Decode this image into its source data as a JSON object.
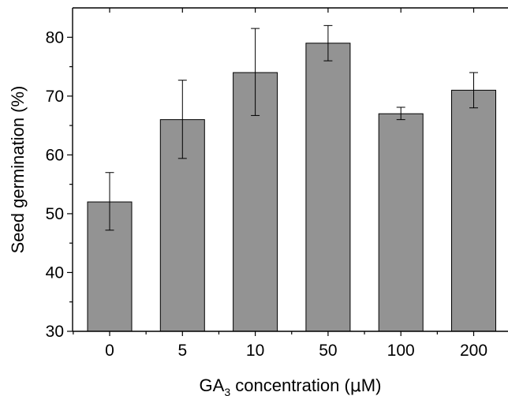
{
  "chart_data": {
    "type": "bar",
    "categories": [
      "0",
      "5",
      "10",
      "50",
      "100",
      "200"
    ],
    "values": [
      52,
      66,
      74,
      79,
      67,
      71
    ],
    "error_low": [
      47.2,
      59.4,
      66.7,
      76.0,
      66.0,
      68.0
    ],
    "error_high": [
      57.0,
      72.7,
      81.5,
      82.0,
      68.1,
      74.0
    ],
    "ylim": [
      30,
      85
    ],
    "yticks": [
      30,
      40,
      50,
      60,
      70,
      80
    ],
    "ylabel": "Seed germination (%)",
    "xlabel": {
      "prefix": "GA",
      "subscript": "3",
      "suffix": " concentration (",
      "mu": "μ",
      "unit": "M)"
    },
    "bar_color": "#939393",
    "grid": false,
    "legend": "none"
  }
}
